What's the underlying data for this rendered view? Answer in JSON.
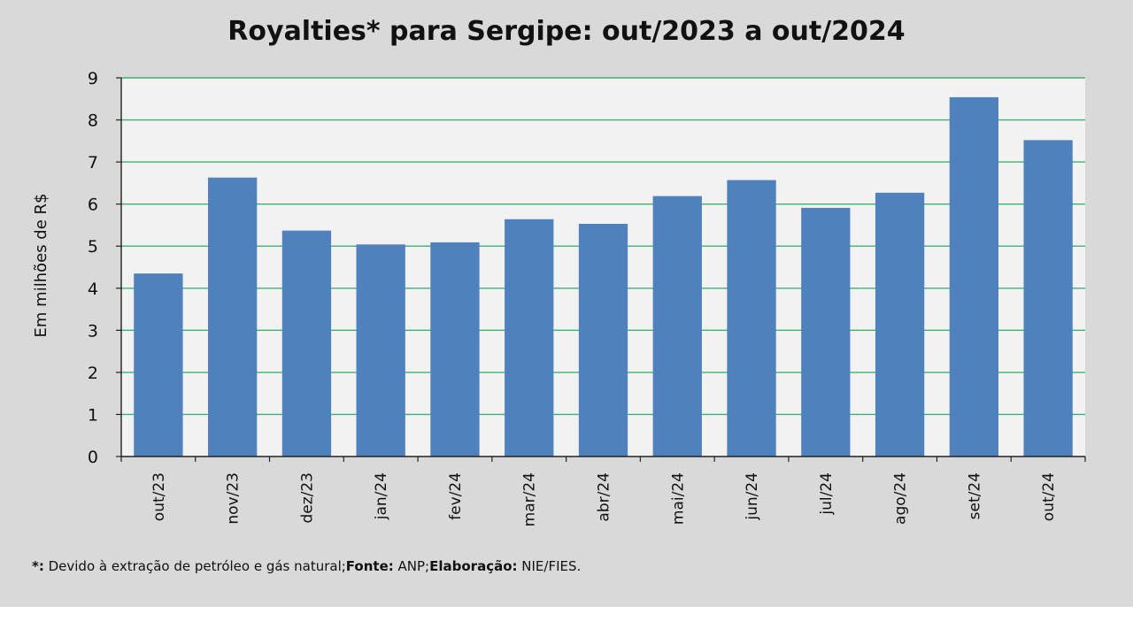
{
  "chart_data": {
    "type": "bar",
    "title": "Royalties* para Sergipe: out/2023 a out/2024",
    "ylabel": "Em milhões de R$",
    "xlabel": "",
    "categories": [
      "out/23",
      "nov/23",
      "dez/23",
      "jan/24",
      "fev/24",
      "mar/24",
      "abr/24",
      "mai/24",
      "jun/24",
      "jul/24",
      "ago/24",
      "set/24",
      "out/24"
    ],
    "values": [
      4.35,
      6.63,
      5.37,
      5.04,
      5.09,
      5.64,
      5.53,
      6.19,
      6.57,
      5.91,
      6.27,
      8.54,
      7.52
    ],
    "ylim": [
      0,
      9
    ],
    "yticks": [
      "0",
      "1",
      "2",
      "3",
      "4",
      "5",
      "6",
      "7",
      "8",
      "9"
    ],
    "grid": true,
    "legend": "none",
    "colors": {
      "bar": "#4f81bd",
      "grid": "#3cb371",
      "plot_bg": "#f2f2f2",
      "frame_bg": "#d9d9d9"
    }
  },
  "footnote": {
    "mark": "*:",
    "note": " Devido à extração de petróleo e gás natural;",
    "source_label": "Fonte:",
    "source": " ANP;",
    "elab_label": "Elaboração:",
    "elab": "  NIE/FIES."
  }
}
